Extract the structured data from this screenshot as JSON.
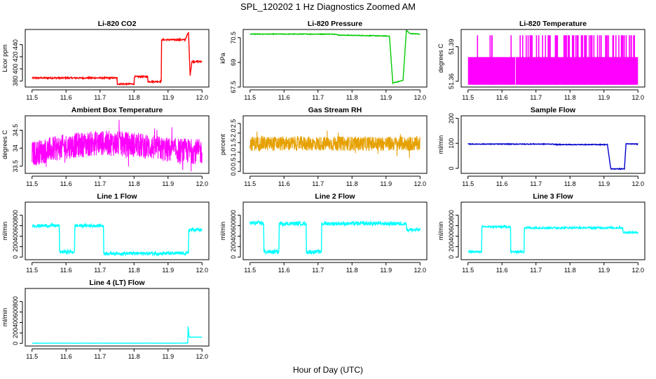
{
  "figure": {
    "title": "SPL_120202  1 Hz Diagnostics Zoomed AM",
    "xlabel": "Hour of Day (UTC)"
  },
  "chart_data": [
    {
      "type": "line",
      "title": "Li-820 CO2",
      "ylabel": "Licor ppm",
      "color": "#ff0000",
      "xlim": [
        11.48,
        12.02
      ],
      "ylim": [
        370,
        465
      ],
      "yticks": [
        380,
        400,
        420,
        440
      ],
      "xticks": [
        11.5,
        11.6,
        11.7,
        11.8,
        11.9,
        12.0
      ],
      "noise": 1.2,
      "series": [
        {
          "x": [
            11.5,
            11.75,
            11.751,
            11.8,
            11.801,
            11.84,
            11.841,
            11.88,
            11.881,
            11.95,
            11.96,
            11.965,
            11.97,
            12.0
          ],
          "y": [
            385,
            385,
            375,
            375,
            387,
            387,
            379,
            379,
            448,
            448,
            460,
            390,
            412,
            412
          ]
        }
      ]
    },
    {
      "type": "line",
      "title": "Li-820 Pressure",
      "ylabel": "kPa",
      "color": "#00cc00",
      "xlim": [
        11.48,
        12.02
      ],
      "ylim": [
        67.5,
        71.0
      ],
      "yticks": [
        67.5,
        69.0,
        70.5
      ],
      "xticks": [
        11.5,
        11.6,
        11.7,
        11.8,
        11.9,
        12.0
      ],
      "noise": 0.02,
      "series": [
        {
          "x": [
            11.5,
            11.75,
            11.76,
            11.91,
            11.92,
            11.94,
            11.95,
            11.96,
            11.97,
            12.0
          ],
          "y": [
            70.72,
            70.72,
            70.66,
            70.6,
            67.75,
            67.85,
            67.9,
            70.95,
            70.75,
            70.72
          ]
        }
      ]
    },
    {
      "type": "line",
      "title": "Li-820 Temperature",
      "ylabel": "degrees C",
      "color": "#ff00ff",
      "xlim": [
        11.48,
        12.02
      ],
      "ylim": [
        51.355,
        51.405
      ],
      "yticks": [
        51.36,
        51.39
      ],
      "ytick_labels": [
        "51.36",
        "51.39"
      ],
      "xticks": [
        11.5,
        11.6,
        11.7,
        11.8,
        11.9,
        12.0
      ],
      "style": "binary",
      "band_low": 51.357,
      "band_high": 51.381,
      "spike_high": 51.4,
      "spikes_after": 11.66
    },
    {
      "type": "line",
      "title": "Ambient Box Temperature",
      "ylabel": "degrees C",
      "color": "#ff00ff",
      "xlim": [
        11.48,
        12.02
      ],
      "ylim": [
        33.3,
        34.9
      ],
      "yticks": [
        33.5,
        34.0,
        34.5
      ],
      "xticks": [
        11.5,
        11.6,
        11.7,
        11.8,
        11.9,
        12.0
      ],
      "style": "dense",
      "center": 33.95,
      "amplitude": 0.35,
      "series": [
        {
          "x": [
            11.5,
            11.6,
            11.7,
            11.8,
            11.9,
            12.0
          ],
          "y": [
            33.85,
            34.05,
            34.15,
            34.1,
            33.95,
            33.9
          ]
        }
      ]
    },
    {
      "type": "line",
      "title": "Gas Stream RH",
      "ylabel": "percent",
      "color": "#e6a000",
      "xlim": [
        11.48,
        12.02
      ],
      "ylim": [
        -0.1,
        2.9
      ],
      "yticks": [
        0.0,
        0.5,
        1.0,
        1.5,
        2.0,
        2.5
      ],
      "ytick_labels": [
        "0.0",
        "0.5",
        "1.0",
        "1.5",
        "2.0",
        "2.5"
      ],
      "xticks": [
        11.5,
        11.6,
        11.7,
        11.8,
        11.9,
        12.0
      ],
      "style": "dense",
      "center": 1.45,
      "amplitude": 0.38,
      "series": [
        {
          "x": [
            11.5,
            12.0
          ],
          "y": [
            1.45,
            1.45
          ]
        }
      ]
    },
    {
      "type": "line",
      "title": "Sample Flow",
      "ylabel": "ml/min",
      "color": "#0000cc",
      "xlim": [
        11.48,
        12.02
      ],
      "ylim": [
        -20,
        210
      ],
      "yticks": [
        0,
        100,
        200
      ],
      "xticks": [
        11.5,
        11.6,
        11.7,
        11.8,
        11.9,
        12.0
      ],
      "noise": 1.5,
      "series": [
        {
          "x": [
            11.5,
            11.75,
            11.76,
            11.91,
            11.92,
            11.96,
            11.965,
            12.0
          ],
          "y": [
            97,
            97,
            95,
            95,
            -2,
            -2,
            98,
            97
          ]
        }
      ]
    },
    {
      "type": "line",
      "title": "Line 1 Flow",
      "ylabel": "ml/min",
      "color": "#00ffff",
      "xlim": [
        11.48,
        12.02
      ],
      "ylim": [
        -50,
        1050
      ],
      "yticks": [
        0,
        200,
        400,
        600,
        800
      ],
      "xticks": [
        11.5,
        11.6,
        11.7,
        11.8,
        11.9,
        12.0
      ],
      "noise": 30,
      "series": [
        {
          "x": [
            11.5,
            11.58,
            11.581,
            11.625,
            11.626,
            11.71,
            11.711,
            11.96,
            11.961,
            12.0
          ],
          "y": [
            600,
            600,
            100,
            100,
            600,
            600,
            70,
            70,
            520,
            520
          ]
        }
      ]
    },
    {
      "type": "line",
      "title": "Line 2 Flow",
      "ylabel": "ml/min",
      "color": "#00ffff",
      "xlim": [
        11.48,
        12.02
      ],
      "ylim": [
        -50,
        1050
      ],
      "yticks": [
        0,
        200,
        400,
        600,
        800
      ],
      "xticks": [
        11.5,
        11.6,
        11.7,
        11.8,
        11.9,
        12.0
      ],
      "noise": 35,
      "series": [
        {
          "x": [
            11.5,
            11.54,
            11.541,
            11.585,
            11.586,
            11.665,
            11.666,
            11.71,
            11.711,
            11.96,
            11.961,
            12.0
          ],
          "y": [
            650,
            650,
            100,
            100,
            640,
            640,
            100,
            100,
            640,
            640,
            520,
            520
          ]
        }
      ]
    },
    {
      "type": "line",
      "title": "Line 3 Flow",
      "ylabel": "ml/min",
      "color": "#00ffff",
      "xlim": [
        11.48,
        12.02
      ],
      "ylim": [
        -50,
        1050
      ],
      "yticks": [
        0,
        200,
        400,
        600,
        800
      ],
      "xticks": [
        11.5,
        11.6,
        11.7,
        11.8,
        11.9,
        12.0
      ],
      "noise": 18,
      "series": [
        {
          "x": [
            11.5,
            11.54,
            11.541,
            11.625,
            11.626,
            11.665,
            11.666,
            11.955,
            11.956,
            12.0
          ],
          "y": [
            100,
            100,
            580,
            580,
            100,
            100,
            560,
            560,
            470,
            470
          ]
        }
      ]
    },
    {
      "type": "line",
      "title": "Line 4 (LT) Flow",
      "ylabel": "ml/min",
      "color": "#00ffff",
      "xlim": [
        11.48,
        12.02
      ],
      "ylim": [
        -50,
        1050
      ],
      "yticks": [
        0,
        200,
        400,
        600,
        800
      ],
      "xticks": [
        11.5,
        11.6,
        11.7,
        11.8,
        11.9,
        12.0
      ],
      "noise": 2,
      "series": [
        {
          "x": [
            11.5,
            11.958,
            11.959,
            11.962,
            11.963,
            12.0
          ],
          "y": [
            5,
            5,
            320,
            120,
            120,
            120
          ]
        }
      ]
    }
  ]
}
